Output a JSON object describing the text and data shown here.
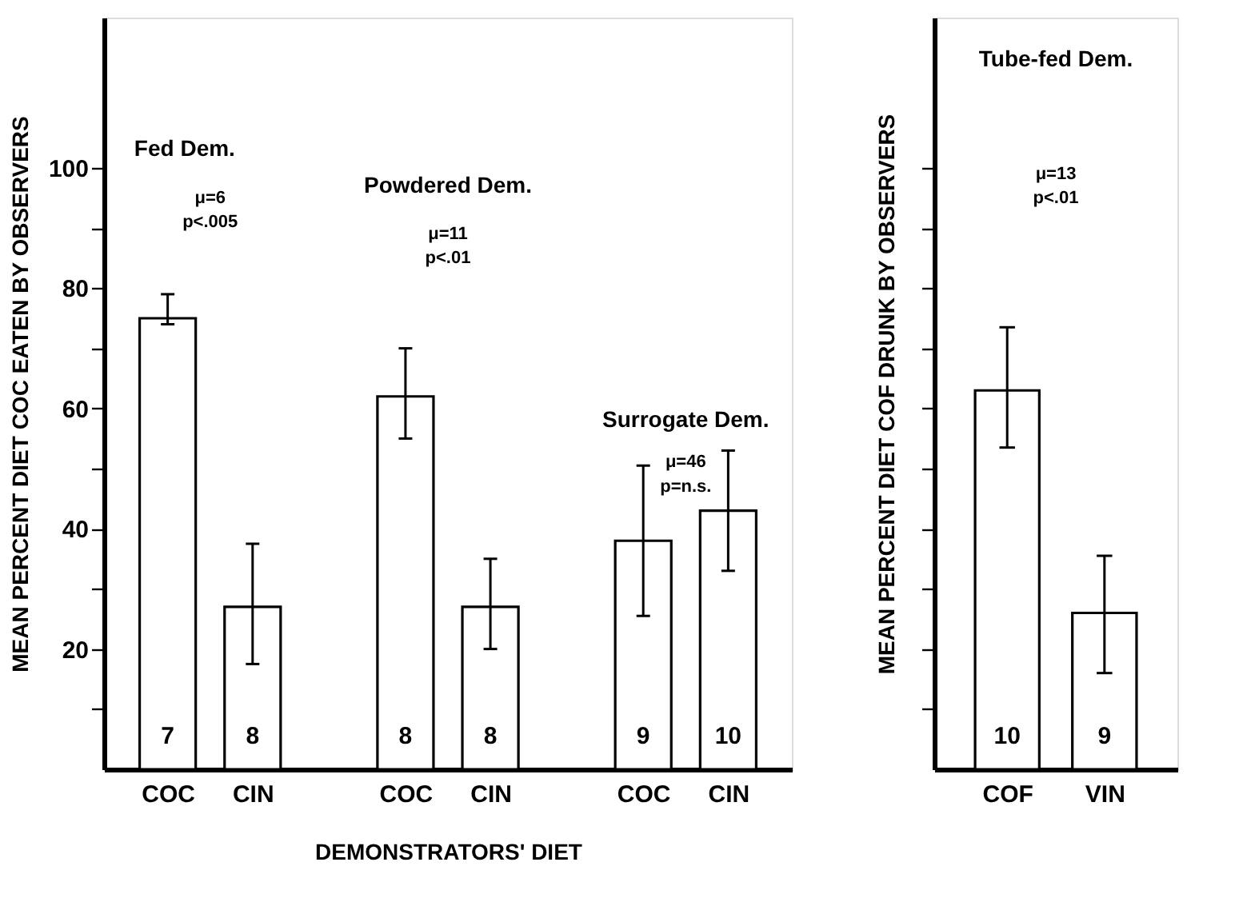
{
  "chart_data": [
    {
      "type": "bar",
      "ylabel": "MEAN PERCENT DIET COC EATEN BY OBSERVERS",
      "xlabel": "DEMONSTRATORS' DIET",
      "categories": [
        "COC",
        "CIN",
        "COC",
        "CIN",
        "COC",
        "CIN"
      ],
      "values": [
        75,
        27,
        62,
        27,
        38,
        43
      ],
      "errors": [
        [
          74,
          79
        ],
        [
          17.5,
          37.5
        ],
        [
          55,
          70
        ],
        [
          20,
          35
        ],
        [
          25.5,
          50.5
        ],
        [
          33,
          53
        ]
      ],
      "color": "#ffffff",
      "ylim": [
        0,
        125
      ],
      "yticks": [
        {
          "value": 10,
          "label": null
        },
        20,
        {
          "value": 30,
          "label": null
        },
        40,
        {
          "value": 50,
          "label": null
        },
        60,
        {
          "value": 70,
          "label": null
        },
        80,
        {
          "value": 90,
          "label": null
        },
        100
      ],
      "annotations": [
        "Fed Dem.",
        "μ=6",
        "p<.005",
        "Powdered Dem.",
        "μ=11",
        "p<.01",
        "Surrogate Dem.",
        "μ=46",
        "p=n.s.",
        "7",
        "8",
        "8",
        "8",
        "9",
        "10"
      ],
      "grid": false
    },
    {
      "type": "bar",
      "ylabel": "MEAN PERCENT DIET COF DRUNK BY OBSERVERS",
      "categories": [
        "COF",
        "VIN"
      ],
      "values": [
        63,
        26
      ],
      "errors": [
        [
          53.5,
          73.5
        ],
        [
          16,
          35.5
        ]
      ],
      "color": "#ffffff",
      "ylim": [
        0,
        125
      ],
      "yticks": [
        10,
        20,
        30,
        40,
        50,
        60,
        70,
        80,
        90,
        100
      ],
      "tick_labels": "x",
      "annotations": [
        "Tube-fed Dem.",
        "μ=13",
        "p<.01",
        "10",
        "9"
      ],
      "grid": false
    }
  ]
}
